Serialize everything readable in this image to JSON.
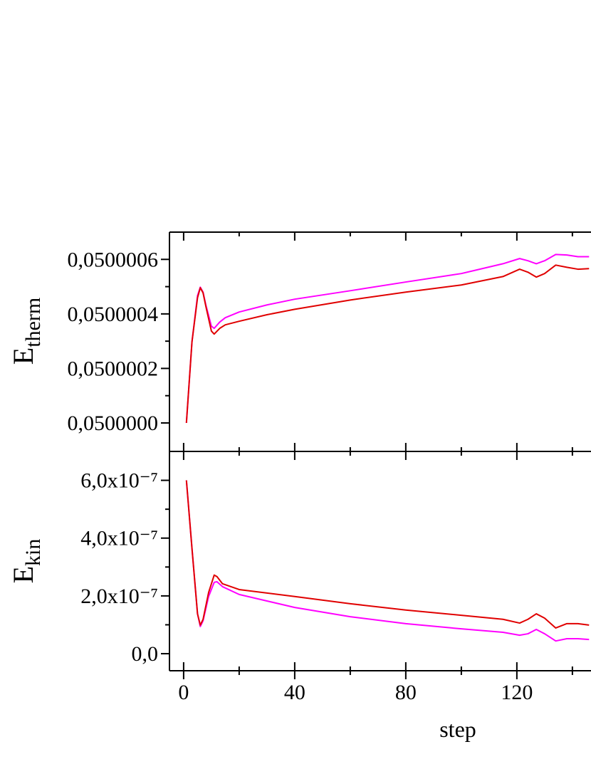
{
  "chart_data": [
    {
      "type": "line",
      "ylabel": "E",
      "ylabel_sub": "therm",
      "x": [
        1,
        3,
        5,
        6,
        7,
        8,
        10,
        11,
        13,
        15,
        20,
        30,
        40,
        60,
        80,
        100,
        115,
        121,
        124,
        127,
        130,
        134,
        138,
        142,
        146
      ],
      "series": [
        {
          "color": "#ff00ff",
          "values": [
            0.05,
            0.050000297,
            0.050000467,
            0.050000498,
            0.05000048,
            0.050000433,
            0.050000355,
            0.050000347,
            0.05000037,
            0.050000386,
            0.050000407,
            0.050000433,
            0.050000454,
            0.050000485,
            0.050000517,
            0.050000548,
            0.050000584,
            0.050000603,
            0.050000595,
            0.050000584,
            0.050000595,
            0.050000618,
            0.050000616,
            0.05000061,
            0.05000061
          ]
        },
        {
          "color": "#e00000",
          "values": [
            0.05,
            0.050000297,
            0.050000459,
            0.050000496,
            0.050000477,
            0.050000428,
            0.050000337,
            0.050000326,
            0.050000347,
            0.05000036,
            0.050000373,
            0.050000397,
            0.050000417,
            0.050000451,
            0.05000048,
            0.050000506,
            0.050000537,
            0.050000564,
            0.050000553,
            0.050000535,
            0.050000548,
            0.050000579,
            0.050000571,
            0.050000564,
            0.050000566
          ]
        }
      ],
      "xlim": [
        -5.1,
        146.7
      ],
      "ylim": [
        0.0499998955,
        0.0500007
      ],
      "yticks": [
        {
          "value": 0.05,
          "label": "0,0500000"
        },
        {
          "value": 0.0500002,
          "label": "0,0500002"
        },
        {
          "value": 0.0500004,
          "label": "0,0500004"
        },
        {
          "value": 0.0500006,
          "label": "0,0500006"
        }
      ],
      "yminorticks": [
        0.0500001,
        0.0500003,
        0.0500005
      ]
    },
    {
      "type": "line",
      "ylabel": "E",
      "ylabel_sub": "kin",
      "xlabel": "step",
      "x": [
        1,
        3,
        5,
        6,
        7,
        9,
        11,
        12,
        14,
        20,
        40,
        60,
        80,
        100,
        115,
        121,
        124,
        127,
        130,
        134,
        138,
        142,
        146
      ],
      "series": [
        {
          "color": "#ff00ff",
          "values": [
            6e-07,
            3.65e-07,
            1.38e-07,
            9.4e-08,
            1.14e-07,
            1.98e-07,
            2.47e-07,
            2.49e-07,
            2.32e-07,
            2.05e-07,
            1.6e-07,
            1.28e-07,
            1.04e-07,
            8.6e-08,
            7.4e-08,
            6.4e-08,
            6.9e-08,
            8.4e-08,
            6.9e-08,
            4.4e-08,
            5.2e-08,
            5.2e-08,
            4.9e-08
          ]
        },
        {
          "color": "#e00000",
          "values": [
            6e-07,
            3.65e-07,
            1.38e-07,
            9.9e-08,
            1.19e-07,
            2.12e-07,
            2.72e-07,
            2.67e-07,
            2.42e-07,
            2.22e-07,
            1.98e-07,
            1.73e-07,
            1.51e-07,
            1.33e-07,
            1.19e-07,
            1.06e-07,
            1.19e-07,
            1.38e-07,
            1.23e-07,
            8.9e-08,
            1.04e-07,
            1.04e-07,
            9.9e-08
          ]
        }
      ],
      "xlim": [
        -5.1,
        146.7
      ],
      "xticks": [
        0,
        40,
        80,
        120
      ],
      "xminorticks": [
        20,
        60,
        100,
        140
      ],
      "ylim": [
        -5.9e-08,
        7e-07
      ],
      "yticks": [
        {
          "value": 0,
          "label": "0,0"
        },
        {
          "value": 2e-07,
          "label": "2,0x10⁻⁷"
        },
        {
          "value": 4e-07,
          "label": "4,0x10⁻⁷"
        },
        {
          "value": 6e-07,
          "label": "6,0x10⁻⁷"
        }
      ],
      "yminorticks": [
        1e-07,
        3e-07,
        5e-07
      ]
    }
  ]
}
